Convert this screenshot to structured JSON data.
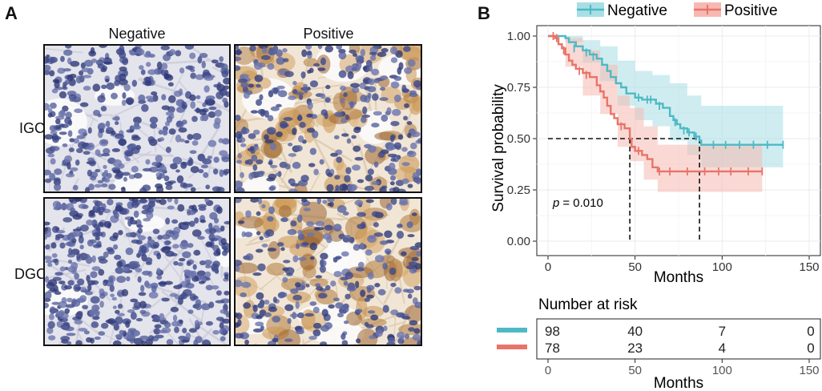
{
  "panel_a": {
    "letter": "A",
    "columns": [
      "Negative",
      "Positive"
    ],
    "rows": [
      "IGC",
      "DGC"
    ]
  },
  "panel_b": {
    "letter": "B",
    "colors": {
      "negative": "#4EB9C4",
      "positive": "#E8746A",
      "neg_fill": "#A7DFE4",
      "pos_fill": "#F6B9B2"
    },
    "risk_table": {
      "title": "Number at risk",
      "xlabel": "Months",
      "ticks": [
        "0",
        "50",
        "100",
        "150"
      ],
      "rows": [
        {
          "name": "Negative",
          "values": [
            "98",
            "40",
            "7",
            "0"
          ]
        },
        {
          "name": "Positive",
          "values": [
            "78",
            "23",
            "4",
            "0"
          ]
        }
      ]
    }
  },
  "chart_data": {
    "type": "line",
    "title": "",
    "xlabel": "Months",
    "ylabel": "Survival probability",
    "xlim": [
      0,
      150
    ],
    "ylim": [
      0,
      1
    ],
    "xticks": [
      "0",
      "50",
      "100",
      "150"
    ],
    "yticks": [
      "0.00",
      "0.25",
      "0.50",
      "0.75",
      "1.00"
    ],
    "legend": [
      "Negative",
      "Positive"
    ],
    "p_label": "p",
    "p_value": "= 0.010",
    "median_line_y": 0.5,
    "medians": [
      87,
      47
    ],
    "series": [
      {
        "name": "Negative",
        "steps": [
          [
            0,
            1.0
          ],
          [
            8,
            1.0
          ],
          [
            10,
            0.99
          ],
          [
            12,
            0.97
          ],
          [
            16,
            0.95
          ],
          [
            20,
            0.93
          ],
          [
            24,
            0.91
          ],
          [
            28,
            0.89
          ],
          [
            31,
            0.86
          ],
          [
            34,
            0.83
          ],
          [
            36,
            0.8
          ],
          [
            39,
            0.77
          ],
          [
            42,
            0.75
          ],
          [
            45,
            0.72
          ],
          [
            50,
            0.7
          ],
          [
            54,
            0.69
          ],
          [
            62,
            0.67
          ],
          [
            66,
            0.65
          ],
          [
            70,
            0.61
          ],
          [
            72,
            0.59
          ],
          [
            74,
            0.57
          ],
          [
            76,
            0.55
          ],
          [
            80,
            0.53
          ],
          [
            84,
            0.51
          ],
          [
            87,
            0.49
          ],
          [
            88,
            0.47
          ],
          [
            135,
            0.47
          ]
        ],
        "upper": [
          [
            0,
            1.0
          ],
          [
            10,
            1.0
          ],
          [
            20,
            0.98
          ],
          [
            30,
            0.95
          ],
          [
            40,
            0.88
          ],
          [
            50,
            0.83
          ],
          [
            60,
            0.81
          ],
          [
            70,
            0.77
          ],
          [
            80,
            0.71
          ],
          [
            88,
            0.66
          ],
          [
            135,
            0.65
          ]
        ],
        "lower": [
          [
            0,
            1.0
          ],
          [
            10,
            0.97
          ],
          [
            20,
            0.87
          ],
          [
            30,
            0.78
          ],
          [
            40,
            0.66
          ],
          [
            50,
            0.59
          ],
          [
            60,
            0.56
          ],
          [
            70,
            0.49
          ],
          [
            80,
            0.42
          ],
          [
            88,
            0.36
          ],
          [
            135,
            0.35
          ]
        ],
        "censored": [
          [
            15,
            0.94
          ],
          [
            22,
            0.92
          ],
          [
            26,
            0.9
          ],
          [
            52,
            0.7
          ],
          [
            57,
            0.69
          ],
          [
            59,
            0.69
          ],
          [
            64,
            0.66
          ],
          [
            73,
            0.58
          ],
          [
            78,
            0.54
          ],
          [
            81,
            0.53
          ],
          [
            85,
            0.51
          ],
          [
            95,
            0.47
          ],
          [
            102,
            0.47
          ],
          [
            110,
            0.47
          ],
          [
            118,
            0.47
          ],
          [
            126,
            0.47
          ],
          [
            135,
            0.47
          ]
        ]
      },
      {
        "name": "Positive",
        "steps": [
          [
            0,
            1.0
          ],
          [
            4,
            0.99
          ],
          [
            6,
            0.96
          ],
          [
            8,
            0.94
          ],
          [
            10,
            0.91
          ],
          [
            12,
            0.88
          ],
          [
            14,
            0.86
          ],
          [
            16,
            0.84
          ],
          [
            20,
            0.82
          ],
          [
            24,
            0.8
          ],
          [
            28,
            0.76
          ],
          [
            30,
            0.73
          ],
          [
            32,
            0.7
          ],
          [
            34,
            0.66
          ],
          [
            36,
            0.62
          ],
          [
            38,
            0.6
          ],
          [
            40,
            0.57
          ],
          [
            44,
            0.55
          ],
          [
            47,
            0.5
          ],
          [
            48,
            0.46
          ],
          [
            50,
            0.44
          ],
          [
            54,
            0.42
          ],
          [
            57,
            0.4
          ],
          [
            60,
            0.36
          ],
          [
            63,
            0.34
          ],
          [
            123,
            0.34
          ]
        ],
        "upper": [
          [
            0,
            1.0
          ],
          [
            10,
            0.99
          ],
          [
            20,
            0.93
          ],
          [
            30,
            0.86
          ],
          [
            40,
            0.71
          ],
          [
            47,
            0.65
          ],
          [
            55,
            0.56
          ],
          [
            63,
            0.47
          ],
          [
            123,
            0.47
          ]
        ],
        "lower": [
          [
            0,
            1.0
          ],
          [
            10,
            0.85
          ],
          [
            20,
            0.71
          ],
          [
            30,
            0.62
          ],
          [
            40,
            0.46
          ],
          [
            47,
            0.39
          ],
          [
            55,
            0.3
          ],
          [
            63,
            0.24
          ],
          [
            123,
            0.24
          ]
        ],
        "censored": [
          [
            3,
            1.0
          ],
          [
            5,
            0.99
          ],
          [
            9,
            0.93
          ],
          [
            18,
            0.83
          ],
          [
            22,
            0.81
          ],
          [
            42,
            0.56
          ],
          [
            52,
            0.44
          ],
          [
            64,
            0.34
          ],
          [
            70,
            0.34
          ],
          [
            80,
            0.34
          ],
          [
            90,
            0.34
          ],
          [
            98,
            0.34
          ],
          [
            105,
            0.34
          ],
          [
            115,
            0.34
          ],
          [
            123,
            0.34
          ]
        ]
      }
    ]
  }
}
